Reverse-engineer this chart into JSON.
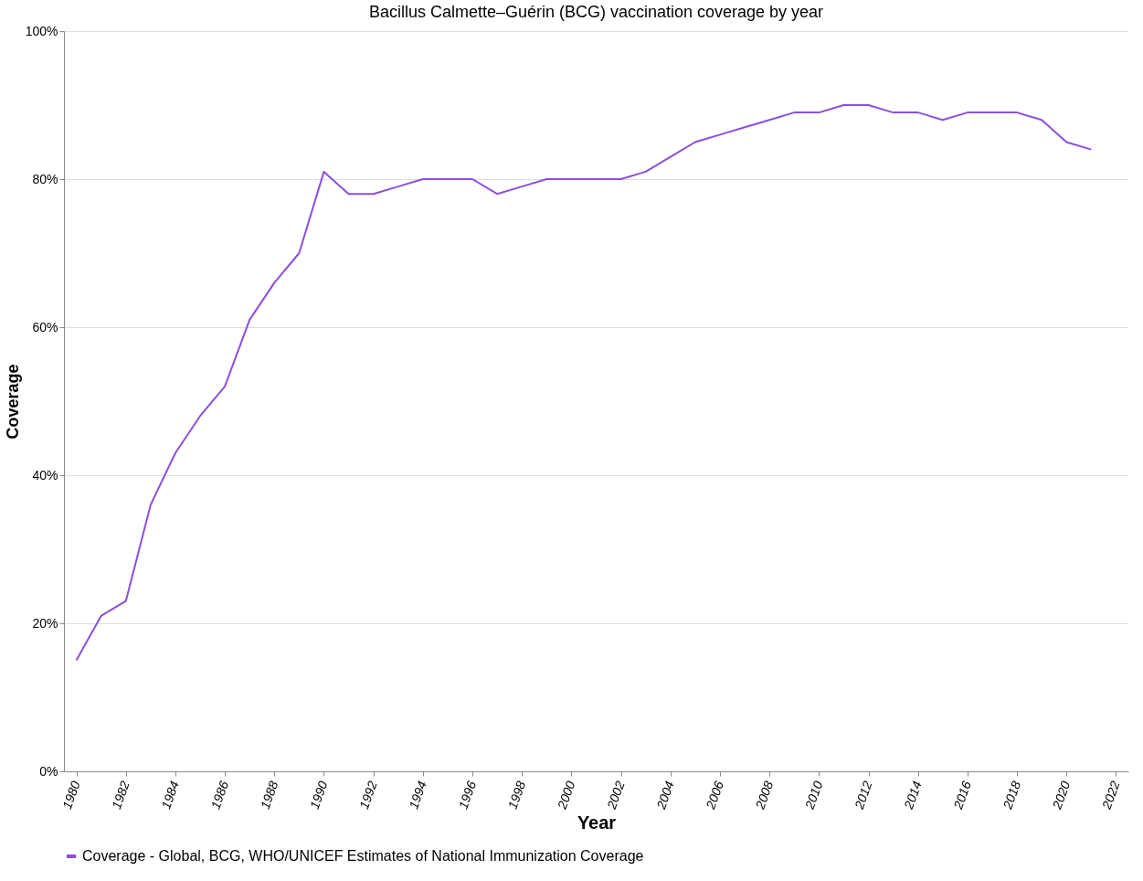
{
  "chart_data": {
    "type": "line",
    "title": "Bacillus Calmette–Guérin (BCG) vaccination coverage by year",
    "xlabel": "Year",
    "ylabel": "Coverage",
    "x": [
      1980,
      1981,
      1982,
      1983,
      1984,
      1985,
      1986,
      1987,
      1988,
      1989,
      1990,
      1991,
      1992,
      1993,
      1994,
      1995,
      1996,
      1997,
      1998,
      1999,
      2000,
      2001,
      2002,
      2003,
      2004,
      2005,
      2006,
      2007,
      2008,
      2009,
      2010,
      2011,
      2012,
      2013,
      2014,
      2015,
      2016,
      2017,
      2018,
      2019,
      2020,
      2021
    ],
    "series": [
      {
        "name": "Coverage - Global, BCG, WHO/UNICEF Estimates of National Immunization Coverage",
        "color": "#8a4fe0",
        "values": [
          15,
          21,
          23,
          36,
          43,
          48,
          52,
          61,
          66,
          70,
          81,
          78,
          78,
          79,
          80,
          80,
          80,
          78,
          79,
          80,
          80,
          80,
          80,
          81,
          83,
          85,
          86,
          87,
          88,
          89,
          89,
          90,
          90,
          89,
          89,
          88,
          89,
          89,
          89,
          88,
          85,
          84
        ]
      }
    ],
    "xlim": [
      1979.5,
      2022.5
    ],
    "xticks": [
      1980,
      1982,
      1984,
      1986,
      1988,
      1990,
      1992,
      1994,
      1996,
      1998,
      2000,
      2002,
      2004,
      2006,
      2008,
      2010,
      2012,
      2014,
      2016,
      2018,
      2020,
      2022
    ],
    "ylim": [
      0,
      100
    ],
    "yticks": [
      {
        "value": 0,
        "label": "0%"
      },
      {
        "value": 20,
        "label": "20%"
      },
      {
        "value": 40,
        "label": "40%"
      },
      {
        "value": 60,
        "label": "60%"
      },
      {
        "value": 80,
        "label": "80%"
      },
      {
        "value": 100,
        "label": "100%"
      }
    ],
    "grid": "y",
    "legend": "bottom",
    "marker": "none",
    "line_style": "solid"
  }
}
